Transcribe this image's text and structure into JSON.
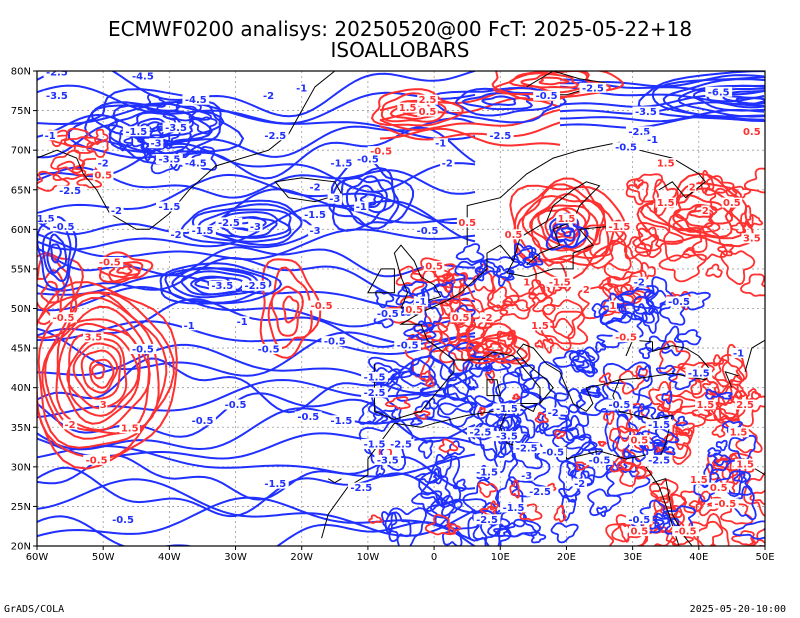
{
  "title_line1": "ECMWF0200 analisys: 20250520@00 FcT: 2025-05-22+18",
  "title_line2": "ISOALLOBARS",
  "footer_left": "GrADS/COLA",
  "footer_right": "2025-05-20-10:00",
  "map": {
    "lon_range": [
      -60,
      50
    ],
    "lat_range": [
      20,
      80
    ],
    "lon_ticks": [
      "60W",
      "50W",
      "40W",
      "30W",
      "20W",
      "10W",
      "0",
      "10E",
      "20E",
      "30E",
      "40E",
      "50E"
    ],
    "lat_ticks": [
      "20N",
      "25N",
      "30N",
      "35N",
      "40N",
      "45N",
      "50N",
      "55N",
      "60N",
      "65N",
      "70N",
      "75N",
      "80N"
    ],
    "colors": {
      "positive": "#ff3030",
      "negative": "#2030ff",
      "coast": "#000000",
      "grid": "#9a9a9a"
    },
    "contour_labels": [
      {
        "text": "-2.5",
        "lon": -57,
        "lat": 79.5,
        "sign": "neg"
      },
      {
        "text": "-4.5",
        "lon": -44,
        "lat": 79,
        "sign": "neg"
      },
      {
        "text": "-3.5",
        "lon": -57,
        "lat": 76.5,
        "sign": "neg"
      },
      {
        "text": "-4.5",
        "lon": -36,
        "lat": 76,
        "sign": "neg"
      },
      {
        "text": "-2",
        "lon": -25,
        "lat": 76.5,
        "sign": "neg"
      },
      {
        "text": "-1",
        "lon": -20,
        "lat": 77.5,
        "sign": "neg"
      },
      {
        "text": "-3.5",
        "lon": -39,
        "lat": 72.5,
        "sign": "neg"
      },
      {
        "text": "-1.5",
        "lon": -45,
        "lat": 72,
        "sign": "neg"
      },
      {
        "text": "-2.5",
        "lon": -24,
        "lat": 71.5,
        "sign": "neg"
      },
      {
        "text": "-1.5",
        "lon": -14,
        "lat": 68,
        "sign": "neg"
      },
      {
        "text": "-0.5",
        "lon": -8,
        "lat": 69.5,
        "sign": "pos"
      },
      {
        "text": "-0.5",
        "lon": -10,
        "lat": 68.5,
        "sign": "neg"
      },
      {
        "text": "-2",
        "lon": 2,
        "lat": 68,
        "sign": "neg"
      },
      {
        "text": "-2.5",
        "lon": 10,
        "lat": 71.5,
        "sign": "neg"
      },
      {
        "text": "-1",
        "lon": 1,
        "lat": 70.5,
        "sign": "neg"
      },
      {
        "text": "1.5",
        "lon": -4,
        "lat": 75,
        "sign": "pos"
      },
      {
        "text": "2.5",
        "lon": -1,
        "lat": 76,
        "sign": "pos"
      },
      {
        "text": "0.5",
        "lon": -1,
        "lat": 74.5,
        "sign": "pos"
      },
      {
        "text": "-0.5",
        "lon": 17,
        "lat": 76.5,
        "sign": "neg"
      },
      {
        "text": "-2.5",
        "lon": 24,
        "lat": 77.5,
        "sign": "neg"
      },
      {
        "text": "-6.5",
        "lon": 43,
        "lat": 77,
        "sign": "neg"
      },
      {
        "text": "-3.5",
        "lon": 32,
        "lat": 74.5,
        "sign": "neg"
      },
      {
        "text": "-2.5",
        "lon": 31,
        "lat": 72,
        "sign": "neg"
      },
      {
        "text": "-1",
        "lon": 33,
        "lat": 71,
        "sign": "neg"
      },
      {
        "text": "0.5",
        "lon": 48,
        "lat": 72,
        "sign": "pos"
      },
      {
        "text": "-0.5",
        "lon": 29,
        "lat": 70,
        "sign": "neg"
      },
      {
        "text": "-3",
        "lon": -42,
        "lat": 70.5,
        "sign": "neg"
      },
      {
        "text": "-2",
        "lon": -50,
        "lat": 68,
        "sign": "neg"
      },
      {
        "text": "-1",
        "lon": -58,
        "lat": 71.5,
        "sign": "neg"
      },
      {
        "text": "-3.5",
        "lon": -40,
        "lat": 68.5,
        "sign": "neg"
      },
      {
        "text": "-4.5",
        "lon": -36,
        "lat": 68,
        "sign": "neg"
      },
      {
        "text": "0.5",
        "lon": -50,
        "lat": 66.5,
        "sign": "pos"
      },
      {
        "text": "-2.5",
        "lon": -55,
        "lat": 64.5,
        "sign": "neg"
      },
      {
        "text": "-1.5",
        "lon": -59,
        "lat": 61,
        "sign": "neg"
      },
      {
        "text": "-1.5",
        "lon": -40,
        "lat": 62.5,
        "sign": "neg"
      },
      {
        "text": "-2",
        "lon": -48,
        "lat": 62,
        "sign": "neg"
      },
      {
        "text": "-0.5",
        "lon": -56,
        "lat": 60,
        "sign": "neg"
      },
      {
        "text": "-1.5",
        "lon": -35,
        "lat": 59.5,
        "sign": "neg"
      },
      {
        "text": "-2",
        "lon": -39,
        "lat": 59,
        "sign": "neg"
      },
      {
        "text": "-2.5",
        "lon": -31,
        "lat": 60.5,
        "sign": "neg"
      },
      {
        "text": "-3",
        "lon": -27,
        "lat": 60,
        "sign": "neg"
      },
      {
        "text": "-3",
        "lon": -15,
        "lat": 63.5,
        "sign": "neg"
      },
      {
        "text": "-2",
        "lon": -18,
        "lat": 65,
        "sign": "neg"
      },
      {
        "text": "-1.5",
        "lon": -18,
        "lat": 61.5,
        "sign": "neg"
      },
      {
        "text": "-1",
        "lon": -11,
        "lat": 62.5,
        "sign": "neg"
      },
      {
        "text": "-3",
        "lon": -18,
        "lat": 59.5,
        "sign": "neg"
      },
      {
        "text": "-0.5",
        "lon": -49,
        "lat": 55.5,
        "sign": "pos"
      },
      {
        "text": "-3.5",
        "lon": -32,
        "lat": 52.5,
        "sign": "neg"
      },
      {
        "text": "-2.5",
        "lon": -27,
        "lat": 52.5,
        "sign": "neg"
      },
      {
        "text": "-0.5",
        "lon": -17,
        "lat": 50,
        "sign": "pos"
      },
      {
        "text": "-0.5",
        "lon": -56,
        "lat": 48.5,
        "sign": "pos"
      },
      {
        "text": "-1",
        "lon": -29,
        "lat": 48,
        "sign": "neg"
      },
      {
        "text": "-1",
        "lon": -37,
        "lat": 47.5,
        "sign": "neg"
      },
      {
        "text": "-0.5",
        "lon": -44,
        "lat": 44.5,
        "sign": "neg"
      },
      {
        "text": "-0.5",
        "lon": -25,
        "lat": 44.5,
        "sign": "neg"
      },
      {
        "text": "-0.5",
        "lon": -15,
        "lat": 45.5,
        "sign": "neg"
      },
      {
        "text": "3.5",
        "lon": -51.5,
        "lat": 46,
        "sign": "pos"
      },
      {
        "text": "3",
        "lon": -50,
        "lat": 37.5,
        "sign": "pos"
      },
      {
        "text": "-2",
        "lon": -55,
        "lat": 35,
        "sign": "pos"
      },
      {
        "text": "1.5",
        "lon": -46,
        "lat": 34.5,
        "sign": "pos"
      },
      {
        "text": "-0.5",
        "lon": -35,
        "lat": 35.5,
        "sign": "neg"
      },
      {
        "text": "-0.5",
        "lon": -30,
        "lat": 37.5,
        "sign": "neg"
      },
      {
        "text": "-0.5",
        "lon": -19,
        "lat": 36,
        "sign": "neg"
      },
      {
        "text": "-1.5",
        "lon": -14,
        "lat": 35.5,
        "sign": "neg"
      },
      {
        "text": "-0.5",
        "lon": -51,
        "lat": 30.5,
        "sign": "pos"
      },
      {
        "text": "-1.5",
        "lon": -24,
        "lat": 27.5,
        "sign": "neg"
      },
      {
        "text": "-0.5",
        "lon": -47,
        "lat": 23,
        "sign": "neg"
      },
      {
        "text": "-2.5",
        "lon": -11,
        "lat": 27,
        "sign": "neg"
      },
      {
        "text": "-1.5",
        "lon": -9,
        "lat": 32.5,
        "sign": "neg"
      },
      {
        "text": "-3.5",
        "lon": -7,
        "lat": 30.5,
        "sign": "neg"
      },
      {
        "text": "-2.5",
        "lon": -5,
        "lat": 32.5,
        "sign": "neg"
      },
      {
        "text": "-1.5",
        "lon": -9,
        "lat": 41,
        "sign": "neg"
      },
      {
        "text": "-2.5",
        "lon": -9,
        "lat": 39,
        "sign": "neg"
      },
      {
        "text": "-0.5",
        "lon": -4,
        "lat": 45,
        "sign": "neg"
      },
      {
        "text": "-0.5",
        "lon": -7,
        "lat": 49,
        "sign": "neg"
      },
      {
        "text": "-1",
        "lon": -2,
        "lat": 50.5,
        "sign": "neg"
      },
      {
        "text": "0.5",
        "lon": -3,
        "lat": 49.5,
        "sign": "pos"
      },
      {
        "text": "0.5",
        "lon": 0,
        "lat": 55,
        "sign": "pos"
      },
      {
        "text": "0.5",
        "lon": 5,
        "lat": 60.5,
        "sign": "pos"
      },
      {
        "text": "-0.5",
        "lon": -1,
        "lat": 59.5,
        "sign": "neg"
      },
      {
        "text": "0.5",
        "lon": 12,
        "lat": 59,
        "sign": "pos"
      },
      {
        "text": "1.5",
        "lon": 20,
        "lat": 61,
        "sign": "pos"
      },
      {
        "text": "-1.5",
        "lon": 28,
        "lat": 60,
        "sign": "pos"
      },
      {
        "text": "1",
        "lon": 14,
        "lat": 53,
        "sign": "pos"
      },
      {
        "text": "-1.5",
        "lon": 19,
        "lat": 53,
        "sign": "pos"
      },
      {
        "text": "2",
        "lon": 23,
        "lat": 52,
        "sign": "pos"
      },
      {
        "text": "1.5",
        "lon": 16,
        "lat": 47.5,
        "sign": "pos"
      },
      {
        "text": "-2",
        "lon": 8,
        "lat": 48.5,
        "sign": "pos"
      },
      {
        "text": "0.5",
        "lon": 4,
        "lat": 48.5,
        "sign": "pos"
      },
      {
        "text": "1",
        "lon": 27,
        "lat": 50,
        "sign": "pos"
      },
      {
        "text": "-0.5",
        "lon": 29,
        "lat": 46,
        "sign": "pos"
      },
      {
        "text": "2",
        "lon": 41,
        "lat": 62,
        "sign": "pos"
      },
      {
        "text": "1.5",
        "lon": 35,
        "lat": 63,
        "sign": "pos"
      },
      {
        "text": "0.5",
        "lon": 45,
        "lat": 63,
        "sign": "pos"
      },
      {
        "text": "3.5",
        "lon": 48,
        "lat": 58.5,
        "sign": "pos"
      },
      {
        "text": "1.5",
        "lon": 35,
        "lat": 68,
        "sign": "pos"
      },
      {
        "text": "2",
        "lon": 39,
        "lat": 65,
        "sign": "pos"
      },
      {
        "text": "-2",
        "lon": 31,
        "lat": 53,
        "sign": "neg"
      },
      {
        "text": "-0.5",
        "lon": 37,
        "lat": 50.5,
        "sign": "neg"
      },
      {
        "text": "-1.5",
        "lon": 40,
        "lat": 41.5,
        "sign": "neg"
      },
      {
        "text": "-1",
        "lon": 46,
        "lat": 44,
        "sign": "neg"
      },
      {
        "text": "1.5",
        "lon": 41,
        "lat": 37.5,
        "sign": "pos"
      },
      {
        "text": "2.5",
        "lon": 47,
        "lat": 37.5,
        "sign": "pos"
      },
      {
        "text": "1.5",
        "lon": 46,
        "lat": 34,
        "sign": "pos"
      },
      {
        "text": "-1.5",
        "lon": 34,
        "lat": 35,
        "sign": "neg"
      },
      {
        "text": "-0.5",
        "lon": 28,
        "lat": 37.5,
        "sign": "neg"
      },
      {
        "text": "-2",
        "lon": 18,
        "lat": 36.5,
        "sign": "neg"
      },
      {
        "text": "-1.5",
        "lon": 11,
        "lat": 37,
        "sign": "neg"
      },
      {
        "text": "-2.5",
        "lon": 7,
        "lat": 34,
        "sign": "neg"
      },
      {
        "text": "-3.5",
        "lon": 11,
        "lat": 33.5,
        "sign": "neg"
      },
      {
        "text": "-2.5",
        "lon": 14,
        "lat": 32,
        "sign": "neg"
      },
      {
        "text": "-0.5",
        "lon": 18,
        "lat": 31.5,
        "sign": "neg"
      },
      {
        "text": "-0.5",
        "lon": 25,
        "lat": 30.5,
        "sign": "neg"
      },
      {
        "text": "-1.5",
        "lon": 8,
        "lat": 29,
        "sign": "neg"
      },
      {
        "text": "-3",
        "lon": 14,
        "lat": 28.5,
        "sign": "neg"
      },
      {
        "text": "-2.5",
        "lon": 16,
        "lat": 26.5,
        "sign": "neg"
      },
      {
        "text": "-2",
        "lon": 22,
        "lat": 27.5,
        "sign": "neg"
      },
      {
        "text": "-2.5",
        "lon": 8,
        "lat": 23,
        "sign": "neg"
      },
      {
        "text": "-1.5",
        "lon": 12,
        "lat": 24.5,
        "sign": "neg"
      },
      {
        "text": "0.5",
        "lon": 31,
        "lat": 33,
        "sign": "pos"
      },
      {
        "text": "-2.5",
        "lon": 34,
        "lat": 30.5,
        "sign": "neg"
      },
      {
        "text": "-0.5",
        "lon": 31,
        "lat": 23,
        "sign": "neg"
      },
      {
        "text": "1.5",
        "lon": 40,
        "lat": 28,
        "sign": "pos"
      },
      {
        "text": "0.5",
        "lon": 43,
        "lat": 27,
        "sign": "pos"
      },
      {
        "text": "-0.5",
        "lon": 44,
        "lat": 25,
        "sign": "pos"
      },
      {
        "text": "1.5",
        "lon": 47,
        "lat": 30,
        "sign": "pos"
      },
      {
        "text": "-0.5",
        "lon": 38,
        "lat": 21.5,
        "sign": "pos"
      },
      {
        "text": "0.5",
        "lon": 31,
        "lat": 21.5,
        "sign": "pos"
      }
    ]
  }
}
